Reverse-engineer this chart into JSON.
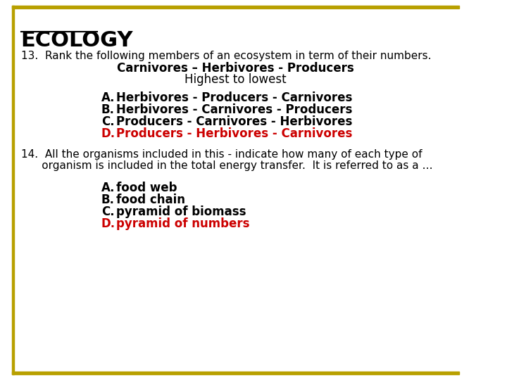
{
  "title": "ECOLOGY",
  "title_dash": " -",
  "bg_color": "#ffffff",
  "border_color": "#b8a000",
  "left_bar_color": "#b8a000",
  "top_bar_color": "#b8a000",
  "bottom_bar_color": "#b8a000",
  "q13_text": "13.  Rank the following members of an ecosystem in term of their numbers.",
  "q13_line2": "Carnivores – Herbivores - Producers",
  "q13_line3": "Highest to lowest",
  "q13_options": [
    {
      "letter": "A.",
      "text": "Herbivores - Producers - Carnivores",
      "color": "#000000"
    },
    {
      "letter": "B.",
      "text": "Herbivores - Carnivores - Producers",
      "color": "#000000"
    },
    {
      "letter": "C.",
      "text": "Producers - Carnivores - Herbivores",
      "color": "#000000"
    },
    {
      "letter": "D.",
      "text": "Producers - Herbivores - Carnivores",
      "color": "#cc0000"
    }
  ],
  "q14_line1": "14.  All the organisms included in this - indicate how many of each type of",
  "q14_line2": "      organism is included in the total energy transfer.  It is referred to as a …",
  "q14_options": [
    {
      "letter": "A.",
      "text": "food web",
      "color": "#000000"
    },
    {
      "letter": "B.",
      "text": "food chain",
      "color": "#000000"
    },
    {
      "letter": "C.",
      "text": "pyramid of biomass",
      "color": "#000000"
    },
    {
      "letter": "D.",
      "text": "pyramid of numbers",
      "color": "#cc0000"
    }
  ]
}
